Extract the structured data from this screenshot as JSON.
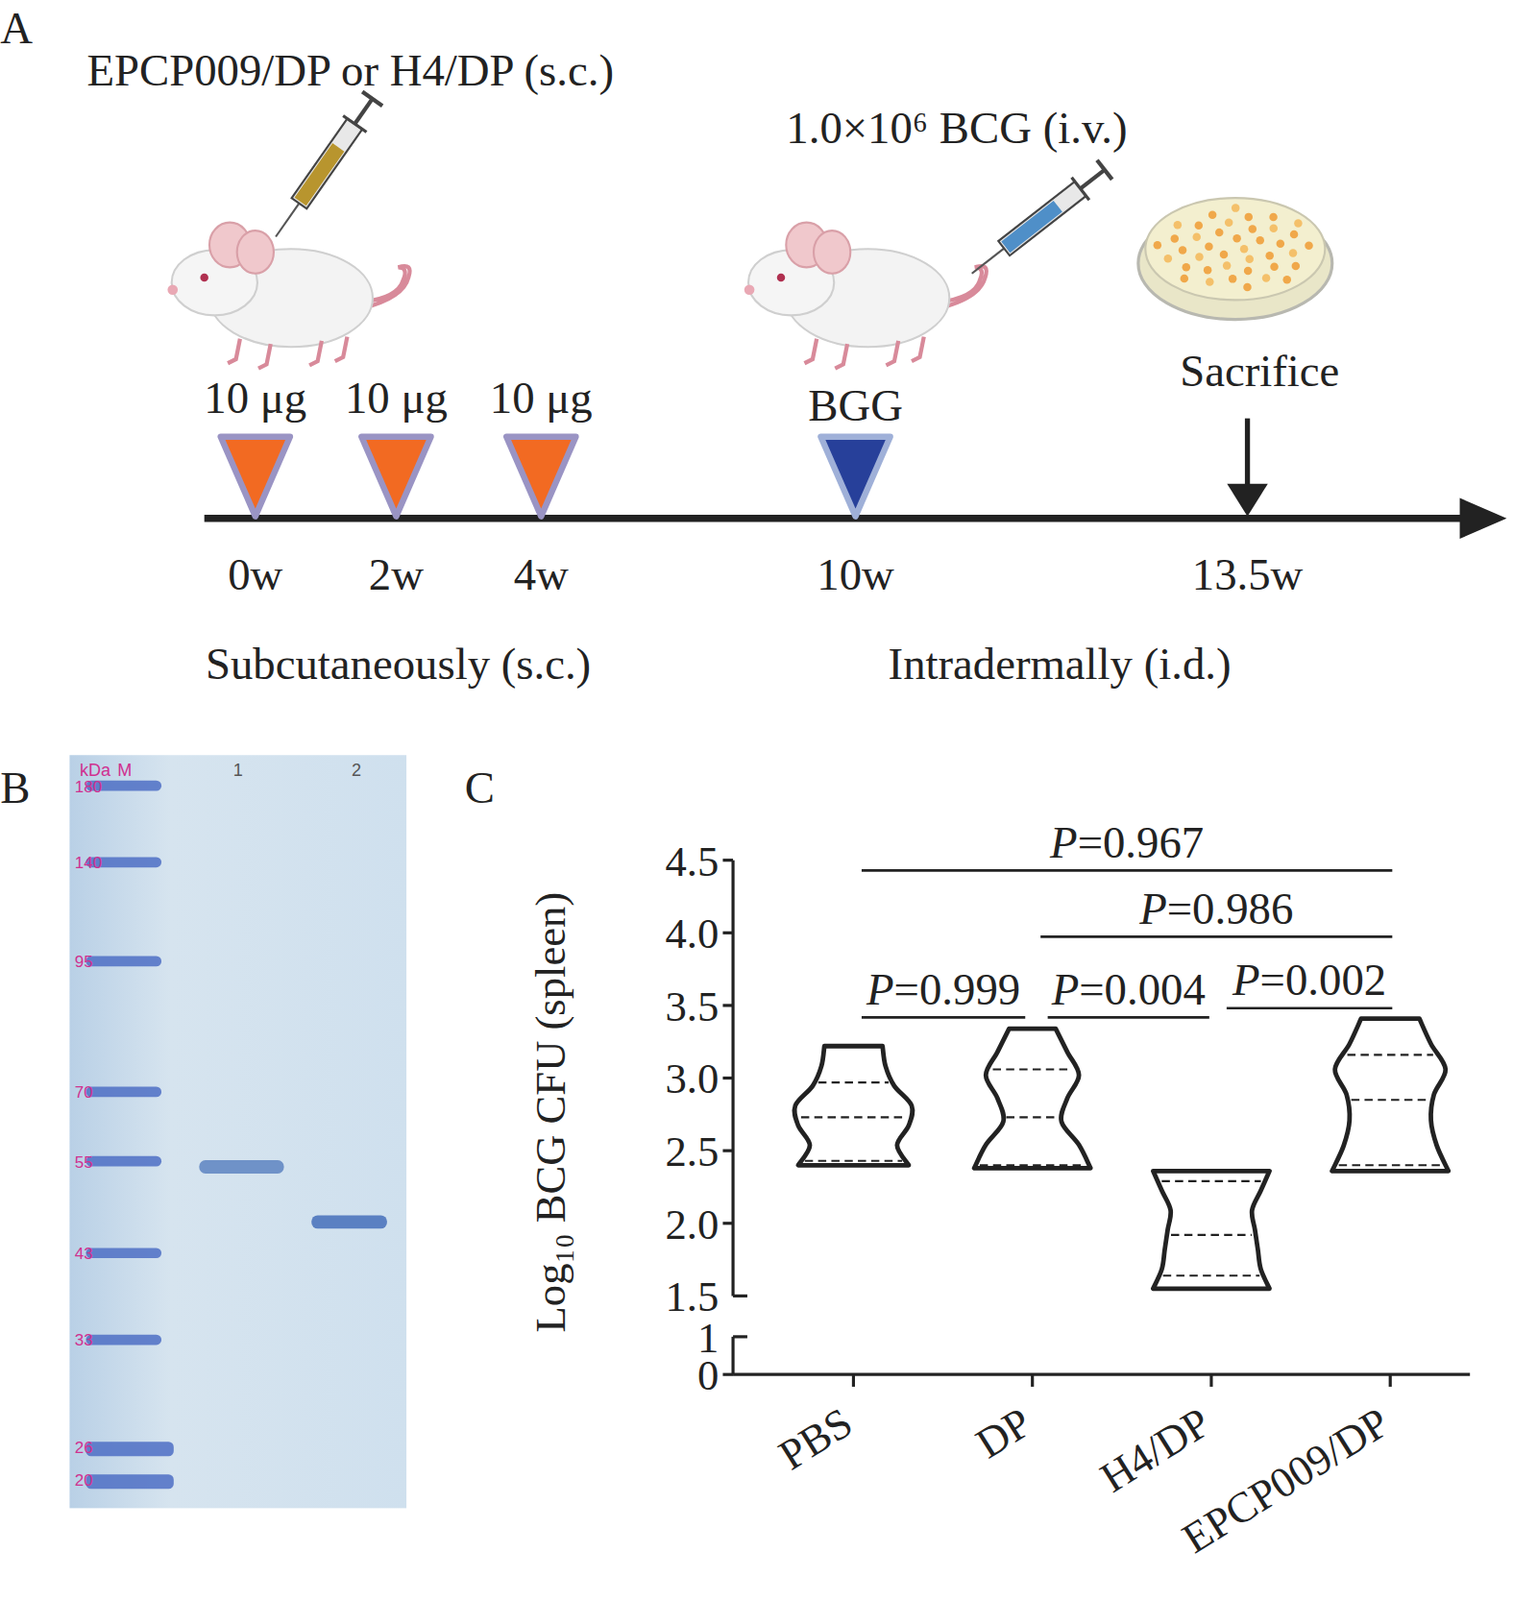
{
  "panel_labels": [
    "A",
    "B",
    "C"
  ],
  "panel_a": {
    "vaccine": "EPCP009/DP or H4/DP (s.c.)",
    "challenge": "1.0×10⁶ BCG (i.v.)",
    "doses": [
      "10 μg",
      "10 μg",
      "10 μg"
    ],
    "boost": "BGG",
    "endpoint": "Sacrifice",
    "timepoints": [
      "0w",
      "2w",
      "4w",
      "10w",
      "13.5w"
    ],
    "routes": [
      "Subcutaneously (s.c.)",
      "Intradermally (i.d.)"
    ]
  },
  "panel_b": {
    "lane_headers": [
      "kDa",
      "M",
      "1",
      "2"
    ],
    "marker_labels": [
      "180",
      "140",
      "95",
      "70",
      "55",
      "43",
      "33",
      "26",
      "20"
    ]
  },
  "chart_data": {
    "type": "violin",
    "y_label": "Log₁₀ BCG CFU (spleen)",
    "categories": [
      "PBS",
      "DP",
      "H4/DP",
      "EPCP009/DP"
    ],
    "min": [
      2.4,
      2.38,
      1.55,
      2.36
    ],
    "q1": [
      2.43,
      2.4,
      1.64,
      2.4
    ],
    "median": [
      2.73,
      2.73,
      1.92,
      2.85
    ],
    "q3": [
      2.97,
      3.06,
      2.29,
      3.16
    ],
    "max": [
      3.22,
      3.34,
      2.36,
      3.41
    ],
    "density": [
      [
        0.95,
        0.75,
        0.95,
        1.0,
        0.7,
        0.55,
        0.5
      ],
      [
        1.0,
        0.8,
        0.5,
        0.6,
        0.8,
        0.6,
        0.4
      ],
      [
        1.0,
        0.85,
        0.8,
        0.75,
        0.7,
        0.85,
        1.0
      ],
      [
        1.0,
        0.8,
        0.7,
        0.75,
        0.95,
        0.7,
        0.5
      ]
    ],
    "ylim": [
      0,
      4.5
    ],
    "y_break": [
      1,
      1.5
    ],
    "yticks": [
      0,
      1,
      1.5,
      {
        "value": 2,
        "label": "2.0"
      },
      2.5,
      {
        "value": 3,
        "label": "3.0"
      },
      3.5,
      {
        "value": 4,
        "label": "4.0"
      },
      4.5
    ],
    "annotations": [
      {
        "from": 0,
        "to": 3,
        "text": "P=0.967"
      },
      {
        "from": 1,
        "to": 3,
        "text": "P=0.986"
      },
      {
        "from": 0,
        "to": 1,
        "text": "P=0.999"
      },
      {
        "from": 1,
        "to": 2,
        "text": "P=0.004"
      },
      {
        "from": 2,
        "to": 3,
        "text": "P=0.002"
      }
    ],
    "color": "#222222"
  }
}
